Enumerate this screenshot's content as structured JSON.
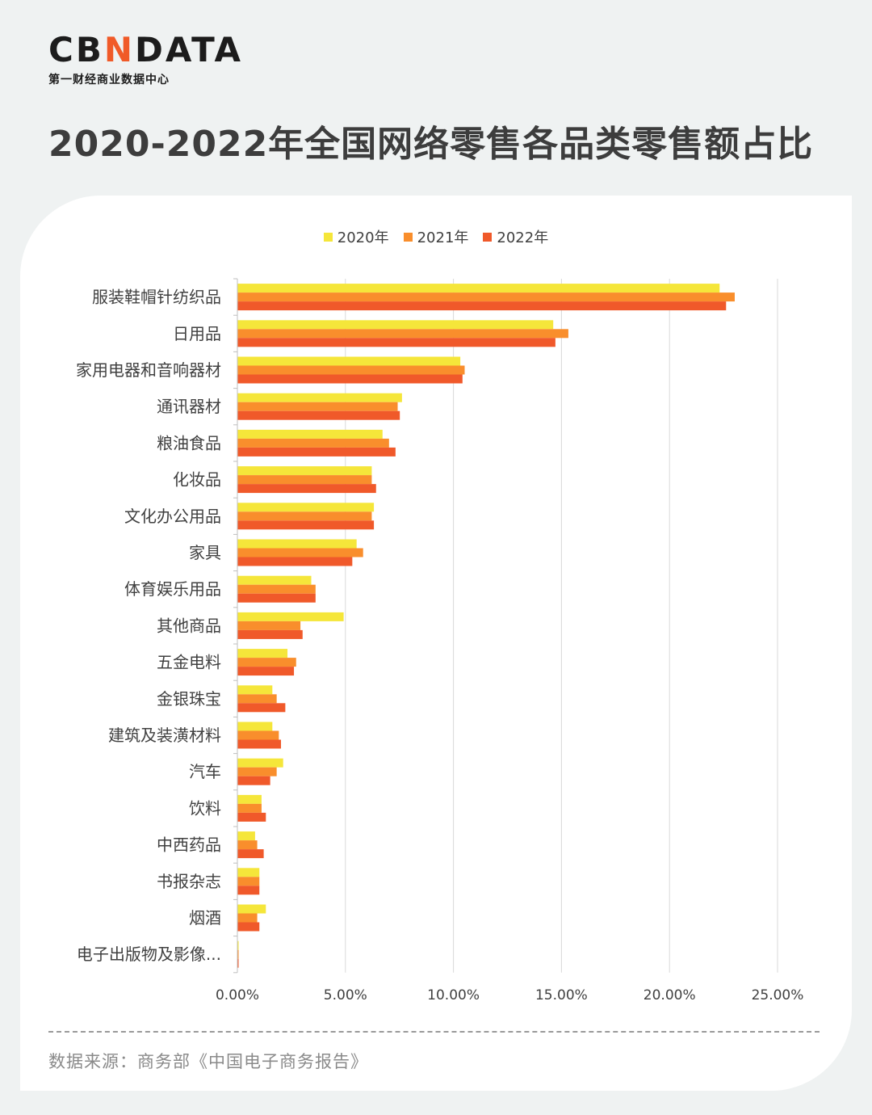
{
  "brand": {
    "logo_pre": "CB",
    "logo_accent": "N",
    "logo_post": "DATA",
    "subtitle": "第一财经商业数据中心"
  },
  "page_title": "2020-2022年全国网络零售各品类零售额占比",
  "source": "数据来源：商务部《中国电子商务报告》",
  "colors": {
    "2020": "#f5e63a",
    "2021": "#f98e2c",
    "2022": "#f0592a",
    "grid": "#d9d9d9",
    "axis_text": "#404040"
  },
  "chart_data": {
    "type": "bar",
    "orientation": "horizontal",
    "categories": [
      "服装鞋帽针纺织品",
      "日用品",
      "家用电器和音响器材",
      "通讯器材",
      "粮油食品",
      "化妆品",
      "文化办公用品",
      "家具",
      "体育娱乐用品",
      "其他商品",
      "五金电料",
      "金银珠宝",
      "建筑及装潢材料",
      "汽车",
      "饮料",
      "中西药品",
      "书报杂志",
      "烟酒",
      "电子出版物及影像..."
    ],
    "series": [
      {
        "name": "2020年",
        "values": [
          22.3,
          14.6,
          10.3,
          7.6,
          6.7,
          6.2,
          6.3,
          5.5,
          3.4,
          4.9,
          2.3,
          1.6,
          1.6,
          2.1,
          1.1,
          0.8,
          1.0,
          1.3,
          0.03
        ]
      },
      {
        "name": "2021年",
        "values": [
          23.0,
          15.3,
          10.5,
          7.4,
          7.0,
          6.2,
          6.2,
          5.8,
          3.6,
          2.9,
          2.7,
          1.8,
          1.9,
          1.8,
          1.1,
          0.9,
          1.0,
          0.9,
          0.03
        ]
      },
      {
        "name": "2022年",
        "values": [
          22.6,
          14.7,
          10.4,
          7.5,
          7.3,
          6.4,
          6.3,
          5.3,
          3.6,
          3.0,
          2.6,
          2.2,
          2.0,
          1.5,
          1.3,
          1.2,
          1.0,
          1.0,
          0.03
        ]
      }
    ],
    "xlim": [
      0,
      25
    ],
    "xticks": [
      "0.00%",
      "5.00%",
      "10.00%",
      "15.00%",
      "20.00%",
      "25.00%"
    ],
    "legend_position": "top-center",
    "grid": "vertical"
  }
}
